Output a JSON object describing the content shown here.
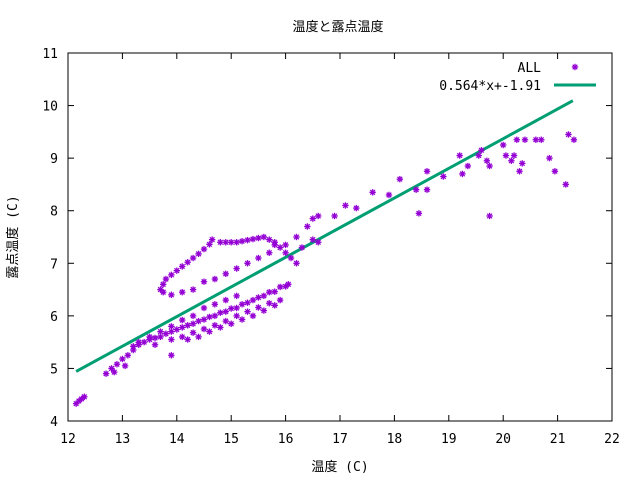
{
  "chart_data": {
    "type": "scatter",
    "title": "温度と露点温度",
    "xlabel": "温度 (C)",
    "ylabel": "露点温度 (C)",
    "xlim": [
      12,
      22
    ],
    "ylim": [
      4,
      11
    ],
    "xticks": [
      12,
      13,
      14,
      15,
      16,
      17,
      18,
      19,
      20,
      21,
      22
    ],
    "yticks": [
      4,
      5,
      6,
      7,
      8,
      9,
      10,
      11
    ],
    "grid": false,
    "legend_position": "top-right",
    "series": [
      {
        "name": "ALL",
        "kind": "points",
        "color": "#9400d3",
        "marker": "asterisk",
        "points": [
          [
            12.15,
            4.33
          ],
          [
            12.2,
            4.38
          ],
          [
            12.25,
            4.42
          ],
          [
            12.3,
            4.46
          ],
          [
            12.7,
            4.9
          ],
          [
            12.8,
            5.0
          ],
          [
            12.9,
            5.08
          ],
          [
            13.0,
            5.18
          ],
          [
            13.1,
            5.25
          ],
          [
            13.2,
            5.35
          ],
          [
            12.85,
            4.93
          ],
          [
            13.05,
            5.05
          ],
          [
            13.3,
            5.45
          ],
          [
            13.5,
            5.6
          ],
          [
            13.7,
            5.7
          ],
          [
            13.9,
            5.8
          ],
          [
            14.1,
            5.92
          ],
          [
            14.3,
            6.0
          ],
          [
            14.5,
            6.15
          ],
          [
            14.7,
            6.22
          ],
          [
            14.9,
            6.3
          ],
          [
            15.1,
            6.38
          ],
          [
            13.3,
            5.5
          ],
          [
            13.5,
            5.55
          ],
          [
            13.7,
            5.6
          ],
          [
            13.9,
            5.7
          ],
          [
            14.1,
            5.78
          ],
          [
            14.3,
            5.85
          ],
          [
            14.5,
            5.93
          ],
          [
            14.7,
            6.0
          ],
          [
            14.9,
            6.08
          ],
          [
            15.1,
            6.15
          ],
          [
            15.3,
            6.25
          ],
          [
            15.5,
            6.35
          ],
          [
            15.7,
            6.45
          ],
          [
            15.9,
            6.55
          ],
          [
            16.05,
            6.6
          ],
          [
            13.2,
            5.42
          ],
          [
            13.4,
            5.5
          ],
          [
            13.6,
            5.58
          ],
          [
            13.8,
            5.66
          ],
          [
            14.0,
            5.74
          ],
          [
            14.2,
            5.82
          ],
          [
            14.4,
            5.9
          ],
          [
            14.6,
            5.98
          ],
          [
            14.8,
            6.06
          ],
          [
            15.0,
            6.14
          ],
          [
            15.2,
            6.22
          ],
          [
            15.4,
            6.3
          ],
          [
            15.6,
            6.38
          ],
          [
            15.8,
            6.46
          ],
          [
            16.0,
            6.56
          ],
          [
            13.6,
            5.45
          ],
          [
            13.9,
            5.55
          ],
          [
            14.1,
            5.6
          ],
          [
            14.3,
            5.68
          ],
          [
            14.5,
            5.75
          ],
          [
            14.7,
            5.82
          ],
          [
            14.9,
            5.9
          ],
          [
            15.1,
            6.0
          ],
          [
            15.3,
            6.08
          ],
          [
            15.5,
            6.16
          ],
          [
            15.7,
            6.24
          ],
          [
            15.9,
            6.3
          ],
          [
            13.9,
            5.25
          ],
          [
            14.2,
            5.55
          ],
          [
            14.4,
            5.6
          ],
          [
            14.6,
            5.7
          ],
          [
            14.8,
            5.78
          ],
          [
            15.0,
            5.85
          ],
          [
            15.2,
            5.93
          ],
          [
            15.4,
            6.0
          ],
          [
            15.6,
            6.1
          ],
          [
            15.8,
            6.2
          ],
          [
            13.7,
            6.5
          ],
          [
            13.75,
            6.6
          ],
          [
            13.8,
            6.7
          ],
          [
            13.9,
            6.78
          ],
          [
            14.0,
            6.86
          ],
          [
            14.1,
            6.94
          ],
          [
            14.2,
            7.02
          ],
          [
            14.3,
            7.1
          ],
          [
            14.4,
            7.18
          ],
          [
            14.5,
            7.27
          ],
          [
            14.6,
            7.36
          ],
          [
            14.65,
            7.45
          ],
          [
            14.8,
            7.4
          ],
          [
            14.9,
            7.4
          ],
          [
            15.0,
            7.4
          ],
          [
            15.1,
            7.4
          ],
          [
            15.2,
            7.42
          ],
          [
            15.3,
            7.44
          ],
          [
            15.4,
            7.46
          ],
          [
            15.5,
            7.48
          ],
          [
            15.6,
            7.5
          ],
          [
            15.7,
            7.45
          ],
          [
            15.8,
            7.4
          ],
          [
            15.9,
            7.3
          ],
          [
            16.0,
            7.2
          ],
          [
            16.1,
            7.1
          ],
          [
            16.2,
            7.0
          ],
          [
            16.3,
            7.3
          ],
          [
            16.5,
            7.45
          ],
          [
            16.6,
            7.4
          ],
          [
            13.75,
            6.45
          ],
          [
            13.9,
            6.4
          ],
          [
            14.1,
            6.45
          ],
          [
            14.3,
            6.5
          ],
          [
            14.5,
            6.65
          ],
          [
            14.7,
            6.7
          ],
          [
            14.9,
            6.8
          ],
          [
            15.1,
            6.9
          ],
          [
            15.3,
            7.0
          ],
          [
            15.5,
            7.1
          ],
          [
            15.7,
            7.2
          ],
          [
            15.8,
            7.35
          ],
          [
            16.0,
            7.35
          ],
          [
            16.2,
            7.5
          ],
          [
            16.4,
            7.7
          ],
          [
            16.5,
            7.85
          ],
          [
            16.6,
            7.9
          ],
          [
            16.9,
            7.9
          ],
          [
            17.1,
            8.1
          ],
          [
            17.3,
            8.05
          ],
          [
            17.6,
            8.35
          ],
          [
            17.9,
            8.3
          ],
          [
            18.1,
            8.6
          ],
          [
            18.4,
            8.4
          ],
          [
            18.45,
            7.95
          ],
          [
            18.6,
            8.75
          ],
          [
            18.6,
            8.4
          ],
          [
            18.9,
            8.65
          ],
          [
            19.2,
            9.05
          ],
          [
            19.25,
            8.7
          ],
          [
            19.35,
            8.85
          ],
          [
            19.55,
            9.05
          ],
          [
            19.6,
            9.15
          ],
          [
            19.7,
            8.95
          ],
          [
            19.75,
            8.85
          ],
          [
            19.75,
            7.9
          ],
          [
            20.0,
            9.25
          ],
          [
            20.05,
            9.05
          ],
          [
            20.15,
            8.95
          ],
          [
            20.2,
            9.05
          ],
          [
            20.25,
            9.35
          ],
          [
            20.3,
            8.75
          ],
          [
            20.35,
            8.9
          ],
          [
            20.4,
            9.35
          ],
          [
            20.6,
            9.35
          ],
          [
            20.7,
            9.35
          ],
          [
            20.85,
            9.0
          ],
          [
            20.95,
            8.75
          ],
          [
            21.15,
            8.5
          ],
          [
            21.2,
            9.45
          ],
          [
            21.3,
            9.35
          ]
        ]
      },
      {
        "name": "0.564*x+-1.91",
        "kind": "line",
        "color": "#009e73",
        "slope": 0.564,
        "intercept": -1.91,
        "x_range": [
          12.15,
          21.28
        ]
      }
    ]
  }
}
